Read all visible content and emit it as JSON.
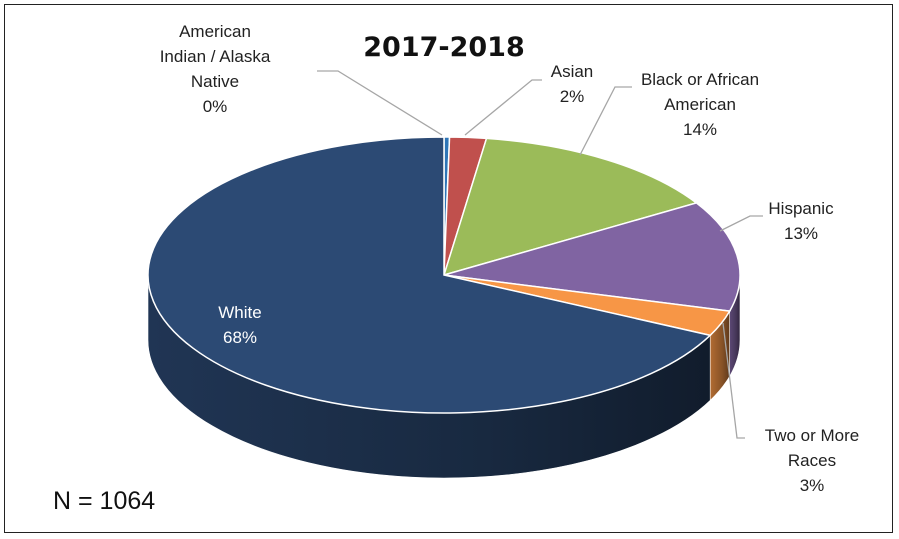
{
  "chart_data": {
    "type": "pie",
    "title": "2017-2018",
    "note": "N = 1064",
    "slices": [
      {
        "label_lines": [
          "American",
          "Indian / Alaska",
          "Native"
        ],
        "pct_label": "0%",
        "value": 0.3,
        "color": "#2e75b6"
      },
      {
        "label_lines": [
          "Asian"
        ],
        "pct_label": "2%",
        "value": 2,
        "color": "#c0504d"
      },
      {
        "label_lines": [
          "Black or African",
          "American"
        ],
        "pct_label": "14%",
        "value": 14,
        "color": "#9bbb59"
      },
      {
        "label_lines": [
          "Hispanic"
        ],
        "pct_label": "13%",
        "value": 13,
        "color": "#8064a2"
      },
      {
        "label_lines": [
          "Two or More",
          "Races"
        ],
        "pct_label": "3%",
        "value": 3,
        "color": "#f79646"
      },
      {
        "label_lines": [
          "White"
        ],
        "pct_label": "68%",
        "value": 68,
        "color": "#2c4a74"
      }
    ]
  }
}
